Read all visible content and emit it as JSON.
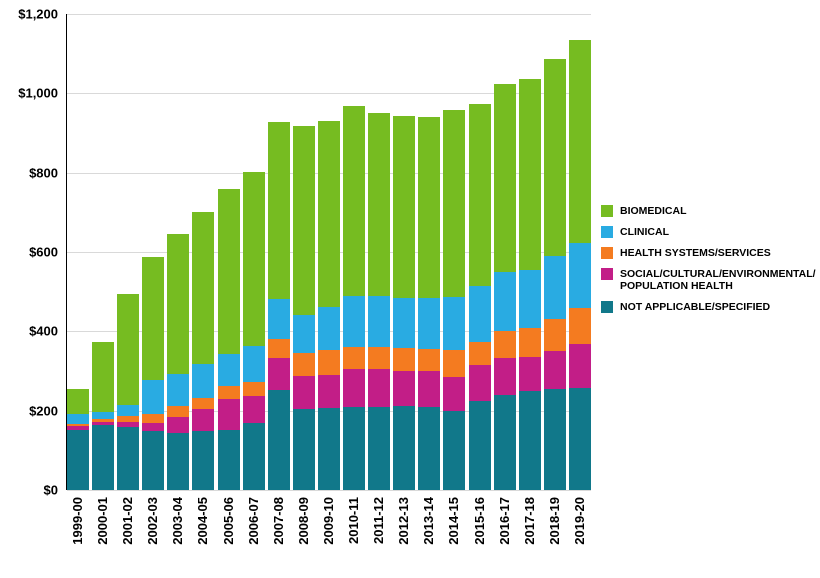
{
  "chart_data": {
    "type": "bar",
    "stacked": true,
    "title": "",
    "categories": [
      "1999-00",
      "2000-01",
      "2001-02",
      "2002-03",
      "2003-04",
      "2004-05",
      "2005-06",
      "2006-07",
      "2007-08",
      "2008-09",
      "2009-10",
      "2010-11",
      "2011-12",
      "2012-13",
      "2013-14",
      "2014-15",
      "2015-16",
      "2016-17",
      "2017-18",
      "2018-19",
      "2019-20"
    ],
    "series": [
      {
        "name": "NOT APPLICABLE/SPECIFIED",
        "color": "#11788A",
        "values": [
          152,
          163,
          158,
          148,
          143,
          148,
          152,
          168,
          252,
          204,
          206,
          210,
          210,
          211,
          209,
          198,
          224,
          240,
          249,
          254,
          257
        ]
      },
      {
        "name": "SOCIAL/CULTURAL/ENVIRONMENTAL/ POPULATION HEALTH",
        "color": "#C21E87",
        "values": [
          9,
          8,
          14,
          22,
          40,
          55,
          78,
          70,
          82,
          84,
          84,
          94,
          94,
          88,
          90,
          88,
          90,
          94,
          86,
          96,
          110
        ]
      },
      {
        "name": "HEALTH SYSTEMS/SERVICES",
        "color": "#F47B20",
        "values": [
          6,
          8,
          14,
          22,
          28,
          30,
          32,
          34,
          48,
          58,
          62,
          56,
          56,
          58,
          56,
          66,
          60,
          66,
          74,
          80,
          92
        ]
      },
      {
        "name": "CLINICAL",
        "color": "#29ABE2",
        "values": [
          25,
          18,
          28,
          85,
          82,
          85,
          82,
          90,
          100,
          95,
          110,
          128,
          130,
          128,
          128,
          135,
          140,
          150,
          146,
          160,
          165
        ]
      },
      {
        "name": "BIOMEDICAL",
        "color": "#76BC21",
        "values": [
          63,
          175,
          281,
          310,
          352,
          384,
          416,
          440,
          446,
          478,
          468,
          480,
          460,
          458,
          457,
          471,
          459,
          473,
          481,
          496,
          510
        ]
      }
    ],
    "legend": [
      "BIOMEDICAL",
      "CLINICAL",
      "HEALTH SYSTEMS/SERVICES",
      "SOCIAL/CULTURAL/ENVIRONMENTAL/ POPULATION HEALTH",
      "NOT APPLICABLE/SPECIFIED"
    ],
    "legend_position": "right",
    "grid": true,
    "ylim": [
      0,
      1200
    ],
    "ytick_step": 200,
    "ytick_labels": [
      "$0",
      "$200",
      "$400",
      "$600",
      "$800",
      "$1,000",
      "$1,200"
    ],
    "xlabel": "",
    "ylabel": ""
  }
}
